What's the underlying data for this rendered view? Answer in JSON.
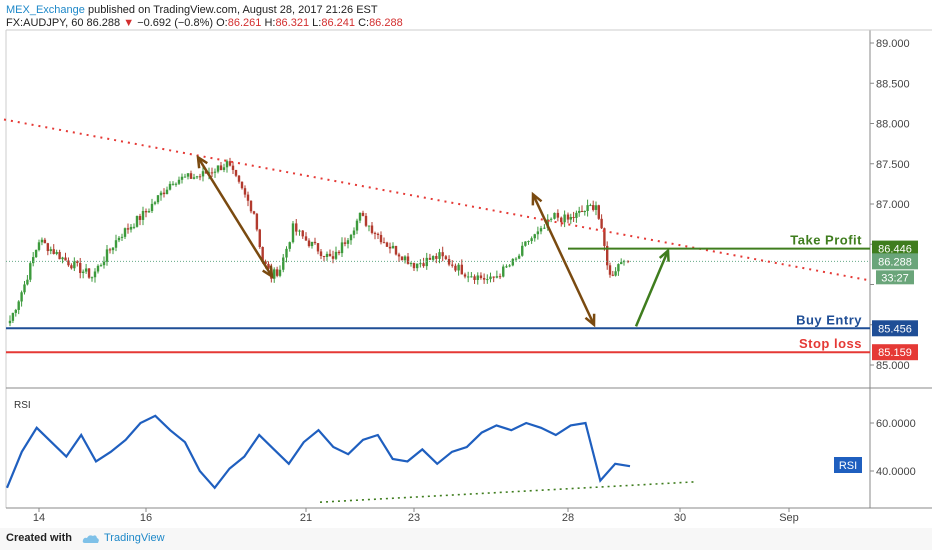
{
  "header": {
    "author": "MEX_Exchange",
    "published": "published on TradingView.com, August 28, 2017 21:26 EST",
    "symbol": "FX:AUDJPY, 60",
    "last": "86.288",
    "change": "−0.692 (−0.8%)",
    "o_label": "O:",
    "o": "86.261",
    "h_label": "H:",
    "h": "86.321",
    "l_label": "L:",
    "l": "86.241",
    "c_label": "C:",
    "c": "86.288"
  },
  "footer": {
    "created_with": "Created with",
    "brand": "TradingView"
  },
  "colors": {
    "up": "#3c9a3c",
    "down": "#b23a2e",
    "trendline": "#e53935",
    "buy": "#1f4e96",
    "stop": "#e53935",
    "take_profit": "#3f7d1e",
    "arrow_brown": "#7a4a10",
    "rsi": "#1f5fbf"
  },
  "chart_data": [
    {
      "type": "line",
      "title": "",
      "y_ticks": [
        85.0,
        85.5,
        86.0,
        86.5,
        87.0,
        87.5,
        88.0,
        88.5,
        89.0
      ],
      "y_tick_labels": [
        "85.000",
        "",
        "",
        "86.500",
        "87.000",
        "87.500",
        "88.000",
        "88.500",
        "89.000"
      ],
      "x_tick_labels": [
        "14",
        "16",
        "21",
        "23",
        "28",
        "30",
        "Sep"
      ],
      "ylim": [
        84.7,
        89.3
      ],
      "close_path": [
        [
          "Aug 13",
          85.55
        ],
        [
          "Aug 13",
          86.0
        ],
        [
          "Aug 14",
          86.55
        ],
        [
          "Aug 14",
          86.3
        ],
        [
          "Aug 15",
          86.1
        ],
        [
          "Aug 15",
          86.6
        ],
        [
          "Aug 16",
          86.9
        ],
        [
          "Aug 16",
          87.3
        ],
        [
          "Aug 17",
          87.35
        ],
        [
          "Aug 17",
          87.5
        ],
        [
          "Aug 18",
          86.9
        ],
        [
          "Aug 18",
          86.3
        ],
        [
          "Aug 18",
          86.1
        ],
        [
          "Aug 20",
          86.2
        ],
        [
          "Aug 20",
          86.7
        ],
        [
          "Aug 21",
          86.55
        ],
        [
          "Aug 21",
          86.3
        ],
        [
          "Aug 22",
          86.85
        ],
        [
          "Aug 22",
          86.5
        ],
        [
          "Aug 23",
          86.25
        ],
        [
          "Aug 23",
          86.35
        ],
        [
          "Aug 24",
          86.15
        ],
        [
          "Aug 24",
          86.05
        ],
        [
          "Aug 25",
          86.3
        ],
        [
          "Aug 25",
          86.55
        ],
        [
          "Aug 27",
          86.65
        ],
        [
          "Aug 27",
          86.85
        ],
        [
          "Aug 28",
          86.8
        ],
        [
          "Aug 28",
          86.9
        ],
        [
          "Aug 28",
          87.0
        ],
        [
          "Aug 28",
          86.1
        ],
        [
          "Aug 29",
          86.35
        ],
        [
          "Aug 29",
          86.288
        ]
      ],
      "levels": [
        {
          "name": "Take Profit",
          "value": 86.446
        },
        {
          "name": "Buy Entry",
          "value": 85.456
        },
        {
          "name": "Stop loss",
          "value": 85.159
        }
      ],
      "last_price": 86.288,
      "countdown": "33:27"
    },
    {
      "type": "line",
      "title": "RSI",
      "y_ticks": [
        40.0,
        60.0
      ],
      "y_tick_labels": [
        "40.0000",
        "60.0000"
      ],
      "badge": "RSI",
      "values": [
        33,
        48,
        58,
        52,
        46,
        55,
        44,
        48,
        53,
        60,
        63,
        57,
        52,
        40,
        33,
        41,
        46,
        55,
        49,
        43,
        52,
        57,
        50,
        47,
        53,
        55,
        45,
        44,
        49,
        43,
        48,
        50,
        56,
        59,
        57,
        60,
        58,
        55,
        59,
        60,
        36,
        43,
        42
      ]
    }
  ]
}
